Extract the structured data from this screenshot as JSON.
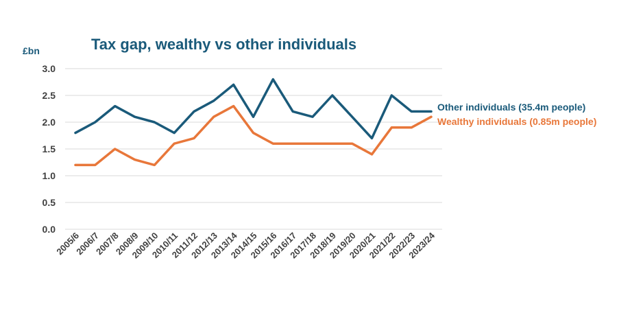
{
  "chart_data": {
    "type": "line",
    "title": "Tax gap, wealthy vs other individuals",
    "ylabel": "£bn",
    "xlabel": "",
    "ylim": [
      0,
      3
    ],
    "yticks": [
      "0.0",
      "0.5",
      "1.0",
      "1.5",
      "2.0",
      "2.5",
      "3.0"
    ],
    "grid": true,
    "legend_placement": "right",
    "categories": [
      "2005/6",
      "2006/7",
      "2007/8",
      "2008/9",
      "2009/10",
      "2010/11",
      "2011/12",
      "2012/13",
      "2013/14",
      "2014/15",
      "2015/16",
      "2016/17",
      "2017/18",
      "2018/19",
      "2019/20",
      "2020/21",
      "2021/22",
      "2022/23",
      "2023/24"
    ],
    "series": [
      {
        "name": "Other individuals (35.4m people)",
        "color": "#1a5a7a",
        "values": [
          1.8,
          2.0,
          2.3,
          2.1,
          2.0,
          1.8,
          2.2,
          2.4,
          2.7,
          2.1,
          2.8,
          2.2,
          2.1,
          2.5,
          2.1,
          1.7,
          2.5,
          2.2,
          2.2
        ]
      },
      {
        "name": "Wealthy individuals (0.85m people)",
        "color": "#e8773a",
        "values": [
          1.2,
          1.2,
          1.5,
          1.3,
          1.2,
          1.6,
          1.7,
          2.1,
          2.3,
          1.8,
          1.6,
          1.6,
          1.6,
          1.6,
          1.6,
          1.4,
          1.9,
          1.9,
          2.1
        ]
      }
    ]
  }
}
